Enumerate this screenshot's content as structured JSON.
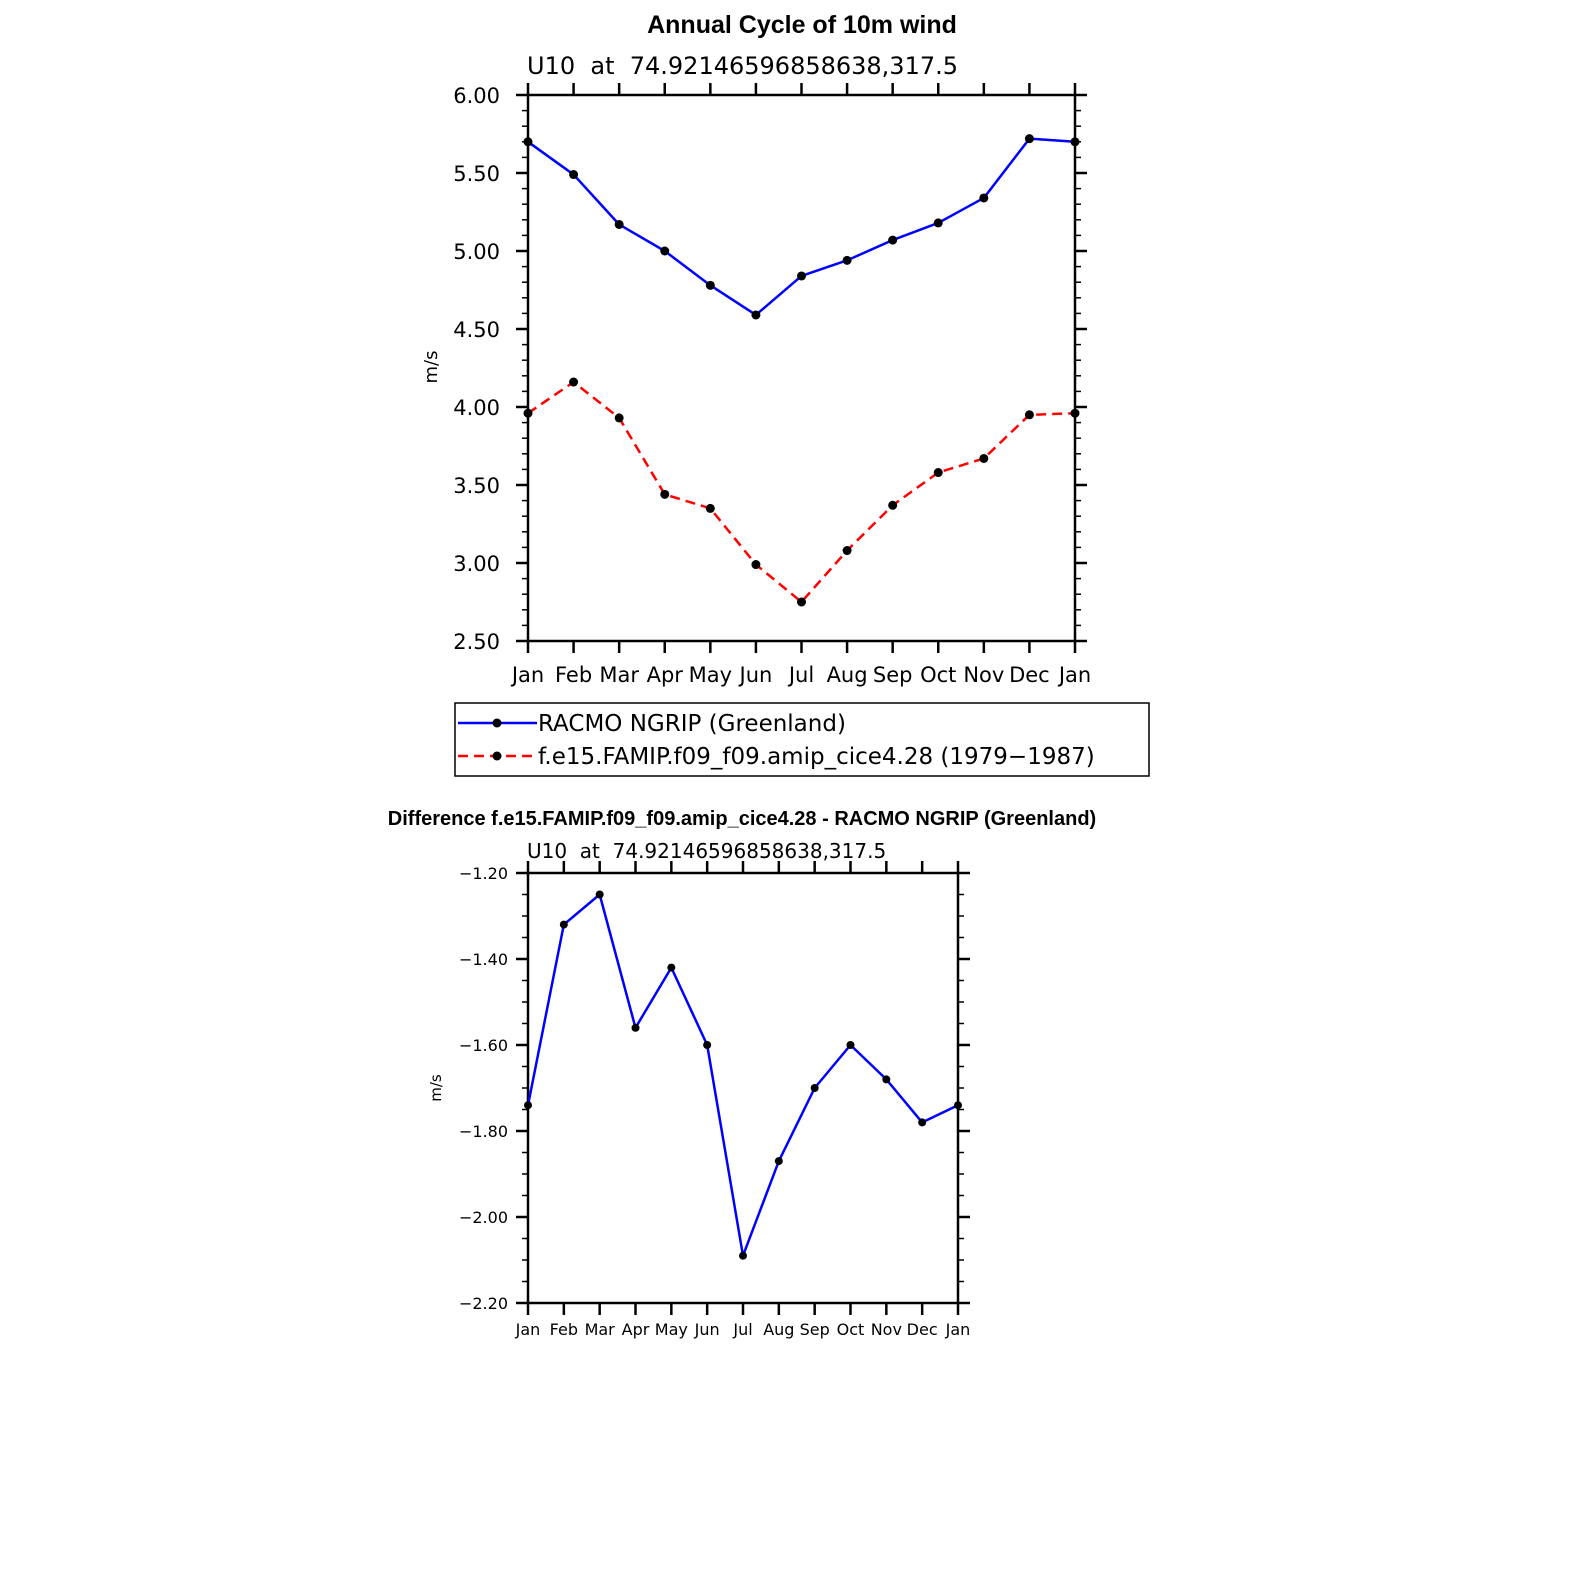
{
  "chart_data": [
    {
      "type": "line",
      "title": "Annual Cycle of 10m wind",
      "subtitle": "U10  at  74.92146596858638,317.5",
      "xlabel": "",
      "ylabel": "m/s",
      "categories": [
        "Jan",
        "Feb",
        "Mar",
        "Apr",
        "May",
        "Jun",
        "Jul",
        "Aug",
        "Sep",
        "Oct",
        "Nov",
        "Dec",
        "Jan"
      ],
      "ylim": [
        2.5,
        6.0
      ],
      "yticks": [
        2.5,
        3.0,
        3.5,
        4.0,
        4.5,
        5.0,
        5.5,
        6.0
      ],
      "ytick_labels": [
        "2.50",
        "3.00",
        "3.50",
        "4.00",
        "4.50",
        "5.00",
        "5.50",
        "6.00"
      ],
      "series": [
        {
          "name": "RACMO NGRIP (Greenland)",
          "color": "#0000ff",
          "dash": "solid",
          "values": [
            5.7,
            5.49,
            5.17,
            5.0,
            4.78,
            4.59,
            4.84,
            4.94,
            5.07,
            5.18,
            5.34,
            5.72,
            5.7
          ]
        },
        {
          "name": "f.e15.FAMIP.f09_f09.amip_cice4.28 (1979−1987)",
          "color": "#ff0000",
          "dash": "dashed",
          "values": [
            3.96,
            4.16,
            3.93,
            3.44,
            3.35,
            2.99,
            2.75,
            3.08,
            3.37,
            3.58,
            3.67,
            3.95,
            3.96
          ]
        }
      ],
      "legend_position": "below"
    },
    {
      "type": "line",
      "title": "Difference f.e15.FAMIP.f09_f09.amip_cice4.28 - RACMO NGRIP (Greenland)",
      "subtitle": "U10  at  74.92146596858638,317.5",
      "xlabel": "",
      "ylabel": "m/s",
      "categories": [
        "Jan",
        "Feb",
        "Mar",
        "Apr",
        "May",
        "Jun",
        "Jul",
        "Aug",
        "Sep",
        "Oct",
        "Nov",
        "Dec",
        "Jan"
      ],
      "ylim": [
        -2.2,
        -1.2
      ],
      "yticks": [
        -2.2,
        -2.0,
        -1.8,
        -1.6,
        -1.4,
        -1.2
      ],
      "ytick_labels": [
        "−2.20",
        "−2.00",
        "−1.80",
        "−1.60",
        "−1.40",
        "−1.20"
      ],
      "series": [
        {
          "name": "Difference",
          "color": "#0000ff",
          "dash": "solid",
          "values": [
            -1.74,
            -1.32,
            -1.25,
            -1.56,
            -1.42,
            -1.6,
            -2.09,
            -1.87,
            -1.7,
            -1.6,
            -1.68,
            -1.78,
            -1.74
          ]
        }
      ]
    }
  ]
}
